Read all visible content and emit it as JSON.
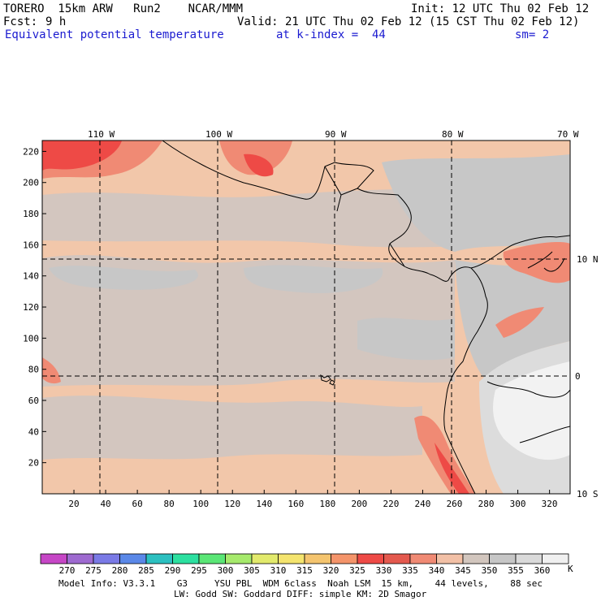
{
  "header": {
    "title": "TORERO  15km ARW   Run2    NCAR/MMM",
    "init": "Init: 12 UTC Thu 02 Feb 12",
    "fcst_label": "Fcst:",
    "fcst_hours": "9 h",
    "valid": "Valid: 21 UTC Thu 02 Feb 12 (15 CST Thu 02 Feb 12)",
    "field": "Equivalent potential temperature",
    "level": "at k-index =  44",
    "smooth": "sm= 2"
  },
  "map": {
    "top_lon_labels": [
      "110 W",
      "100 W",
      "90 W",
      "80 W",
      "70 W"
    ],
    "right_lat_labels": [
      "10 N",
      "0",
      "10 S"
    ],
    "y_grid_ticks": [
      "220",
      "200",
      "180",
      "160",
      "140",
      "120",
      "100",
      "80",
      "60",
      "40",
      "20"
    ],
    "x_grid_ticks": [
      "20",
      "40",
      "60",
      "80",
      "100",
      "120",
      "140",
      "160",
      "180",
      "200",
      "220",
      "240",
      "260",
      "280",
      "300",
      "320"
    ]
  },
  "colorbar": {
    "colors": [
      "#c646c6",
      "#9e6ad0",
      "#7a7ae6",
      "#5a88e8",
      "#2cc0c0",
      "#2ce0a0",
      "#5ae676",
      "#a6ea6c",
      "#e2ea6c",
      "#f4e46e",
      "#f4c46e",
      "#f4946a",
      "#ee4a46",
      "#e4594e",
      "#f08a74",
      "#f2c0a6",
      "#d2c6be",
      "#c6c6c6",
      "#dadada",
      "#f0f0f0"
    ],
    "labels": [
      "270",
      "275",
      "280",
      "285",
      "290",
      "295",
      "300",
      "305",
      "310",
      "315",
      "320",
      "325",
      "330",
      "335",
      "340",
      "345",
      "350",
      "355",
      "360"
    ],
    "unit": "K"
  },
  "footer": {
    "line1": "Model Info: V3.3.1    G3     YSU PBL  WDM 6class  Noah LSM  15 km,    44 levels,    88 sec",
    "line2": "LW: Godd SW: Goddard DIFF: simple KM: 2D Smagor"
  }
}
